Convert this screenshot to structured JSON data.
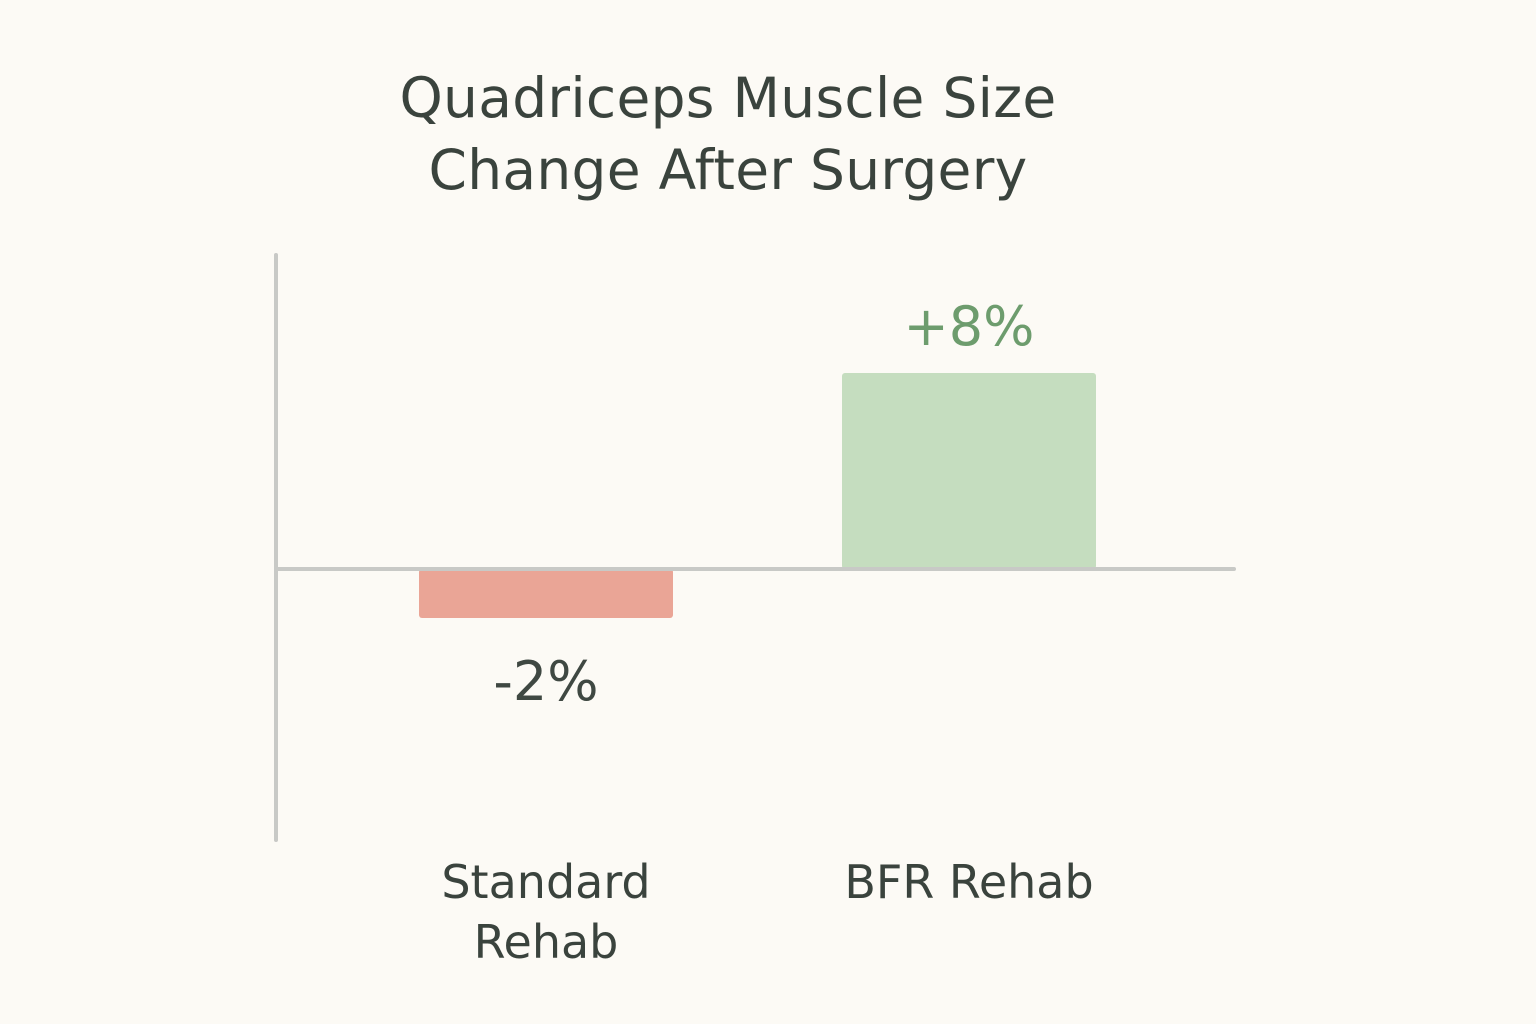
{
  "chart_data": {
    "type": "bar",
    "title_lines": [
      "Quadriceps Muscle Size",
      "Change After Surgery"
    ],
    "categories": [
      {
        "label_lines": [
          "Standard",
          "Rehab"
        ]
      },
      {
        "label_lines": [
          "BFR Rehab"
        ]
      }
    ],
    "values": [
      -2,
      8
    ],
    "value_labels": [
      "-2%",
      "+8%"
    ],
    "unit": "%",
    "bar_colors": [
      "#eaa596",
      "#c5ddbf"
    ],
    "value_label_colors": [
      "#3f4842",
      "#6d9c6d"
    ],
    "axis_color": "#c8c9c6",
    "text_color": "#3a433d",
    "ylim": [
      -10,
      10
    ],
    "grid": false,
    "legend": "none"
  }
}
